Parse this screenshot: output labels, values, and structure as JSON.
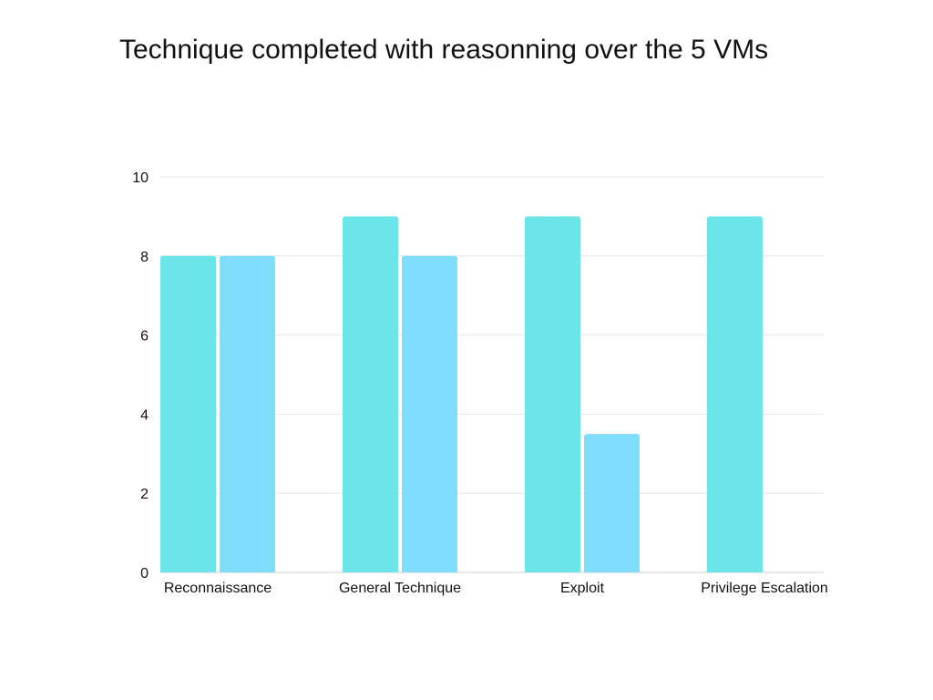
{
  "chart_data": {
    "type": "bar",
    "title": "Technique completed with reasonning over the 5 VMs",
    "xlabel": "",
    "ylabel": "",
    "categories": [
      "Reconnaissance",
      "General Technique",
      "Exploit",
      "Privilege Escalation"
    ],
    "series": [
      {
        "values": [
          8,
          9,
          9,
          9
        ],
        "color": "#6ce5e8"
      },
      {
        "values": [
          8,
          8,
          3.5,
          0
        ],
        "color": "#7fdefe"
      }
    ],
    "ylim": [
      0,
      10
    ],
    "yticks": [
      0,
      2,
      4,
      6,
      8,
      10
    ],
    "grid": true,
    "legend": "none"
  }
}
